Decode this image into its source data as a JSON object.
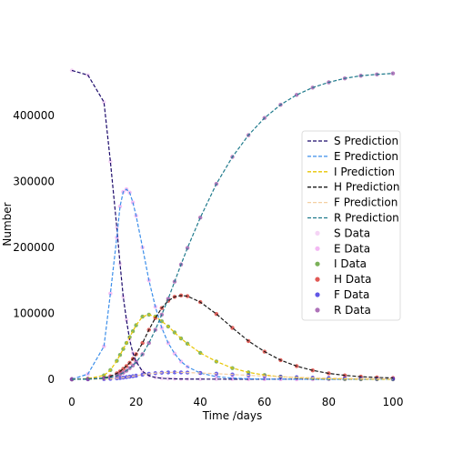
{
  "chart_data": {
    "type": "line",
    "title": "",
    "xlabel": "Time /days",
    "ylabel": "Number",
    "xlim": [
      0,
      100
    ],
    "ylim": [
      0,
      470000
    ],
    "xticks": [
      0,
      20,
      40,
      60,
      80,
      100
    ],
    "xtick_labels": [
      "0",
      "20",
      "40",
      "60",
      "80",
      "100"
    ],
    "yticks": [
      0,
      100000,
      200000,
      300000,
      400000
    ],
    "ytick_labels": [
      "0",
      "100000",
      "200000",
      "300000",
      "400000"
    ],
    "grid": false,
    "legend_position": "right",
    "x": [
      0,
      5,
      10,
      12,
      14,
      15,
      16,
      17,
      18,
      19,
      20,
      22,
      24,
      26,
      28,
      30,
      32,
      34,
      36,
      40,
      45,
      50,
      55,
      60,
      65,
      70,
      75,
      80,
      85,
      90,
      95,
      100
    ],
    "series": [
      {
        "name": "S Prediction",
        "kind": "prediction",
        "color": "#1c0a6b",
        "dash": true,
        "values": [
          468000,
          461000,
          420000,
          330000,
          230000,
          175000,
          125000,
          90000,
          60000,
          40000,
          27000,
          12000,
          5500,
          2800,
          1600,
          1000,
          700,
          500,
          400,
          300,
          250,
          200,
          180,
          170,
          160,
          150,
          150,
          150,
          150,
          150,
          150,
          150
        ]
      },
      {
        "name": "E Prediction",
        "kind": "prediction",
        "color": "#3b8eea",
        "dash": true,
        "values": [
          0,
          8000,
          50000,
          130000,
          215000,
          262000,
          284000,
          288000,
          283000,
          268000,
          248000,
          200000,
          150000,
          110000,
          78000,
          55000,
          39000,
          27000,
          19000,
          9500,
          4000,
          1800,
          800,
          400,
          200,
          100,
          50,
          30,
          20,
          10,
          5,
          0
        ]
      },
      {
        "name": "I Prediction",
        "kind": "prediction",
        "color": "#e8c600",
        "dash": true,
        "values": [
          0,
          1000,
          6000,
          14000,
          28000,
          37000,
          46000,
          55000,
          64000,
          73000,
          82000,
          95000,
          98000,
          95000,
          88000,
          80000,
          71000,
          62000,
          54000,
          40000,
          27000,
          17000,
          10500,
          6500,
          4000,
          2500,
          1500,
          900,
          500,
          300,
          200,
          100
        ]
      },
      {
        "name": "H Prediction",
        "kind": "prediction",
        "color": "#1a1a1a",
        "dash": true,
        "values": [
          0,
          500,
          2000,
          4500,
          9000,
          12000,
          16000,
          20000,
          25000,
          31000,
          38000,
          55000,
          75000,
          93000,
          108000,
          119000,
          125000,
          127000,
          126000,
          117000,
          99000,
          78000,
          58000,
          42000,
          29000,
          20000,
          13500,
          9000,
          6000,
          4000,
          2800,
          2000
        ]
      },
      {
        "name": "F Prediction",
        "kind": "prediction",
        "color": "#f4cfa2",
        "dash": true,
        "values": [
          0,
          100,
          400,
          800,
          1500,
          2000,
          2600,
          3300,
          4000,
          4800,
          5500,
          7000,
          8300,
          9300,
          10000,
          10400,
          10500,
          10400,
          10200,
          9600,
          8500,
          7300,
          6000,
          4900,
          3900,
          3100,
          2400,
          1900,
          1500,
          1200,
          900,
          700
        ]
      },
      {
        "name": "R Prediction",
        "kind": "prediction",
        "color": "#1f7a8c",
        "dash": true,
        "values": [
          0,
          200,
          1500,
          3000,
          5500,
          7500,
          10000,
          13000,
          17000,
          21000,
          26000,
          38000,
          55000,
          75000,
          98000,
          122000,
          148000,
          174000,
          199000,
          245000,
          296000,
          337000,
          370000,
          396000,
          416000,
          431000,
          442000,
          450000,
          456000,
          460000,
          462000,
          463500
        ]
      },
      {
        "name": "S Data",
        "kind": "data",
        "color": "#f2c9f2",
        "values": [
          468000,
          461000,
          420000,
          330000,
          230000,
          175000,
          125000,
          90000,
          60000,
          40000,
          27000,
          12000,
          5500,
          2800,
          1600,
          1000,
          700,
          500,
          400,
          300,
          250,
          200,
          180,
          170,
          160,
          150,
          150,
          150,
          150,
          150,
          150,
          150
        ]
      },
      {
        "name": "E Data",
        "kind": "data",
        "color": "#f0a8f0",
        "values": [
          0,
          8000,
          50000,
          130000,
          215000,
          262000,
          284000,
          288000,
          283000,
          268000,
          248000,
          200000,
          150000,
          110000,
          78000,
          55000,
          39000,
          27000,
          19000,
          9500,
          4000,
          1800,
          800,
          400,
          200,
          100,
          50,
          30,
          20,
          10,
          5,
          0
        ]
      },
      {
        "name": "I Data",
        "kind": "data",
        "color": "#5a9e2f",
        "values": [
          0,
          1000,
          6000,
          14000,
          28000,
          37000,
          46000,
          55000,
          64000,
          73000,
          82000,
          95000,
          98000,
          95000,
          88000,
          80000,
          71000,
          62000,
          54000,
          40000,
          27000,
          17000,
          10500,
          6500,
          4000,
          2500,
          1500,
          900,
          500,
          300,
          200,
          100
        ]
      },
      {
        "name": "H Data",
        "kind": "data",
        "color": "#d9302a",
        "values": [
          0,
          500,
          2000,
          4500,
          9000,
          12000,
          16000,
          20000,
          25000,
          31000,
          38000,
          55000,
          75000,
          93000,
          108000,
          119000,
          125000,
          127000,
          126000,
          117000,
          99000,
          78000,
          58000,
          42000,
          29000,
          20000,
          13500,
          9000,
          6000,
          4000,
          2800,
          2000
        ]
      },
      {
        "name": "F Data",
        "kind": "data",
        "color": "#3a2de0",
        "values": [
          0,
          100,
          400,
          800,
          1500,
          2000,
          2600,
          3300,
          4000,
          4800,
          5500,
          7000,
          8300,
          9300,
          10000,
          10400,
          10500,
          10400,
          10200,
          9600,
          8500,
          7300,
          6000,
          4900,
          3900,
          3100,
          2400,
          1900,
          1500,
          1200,
          900,
          700
        ]
      },
      {
        "name": "R Data",
        "kind": "data",
        "color": "#9a4fa8",
        "values": [
          0,
          200,
          1500,
          3000,
          5500,
          7500,
          10000,
          13000,
          17000,
          21000,
          26000,
          38000,
          55000,
          75000,
          98000,
          122000,
          148000,
          174000,
          199000,
          245000,
          296000,
          337000,
          370000,
          396000,
          416000,
          431000,
          442000,
          450000,
          456000,
          460000,
          462000,
          463500
        ]
      }
    ]
  }
}
